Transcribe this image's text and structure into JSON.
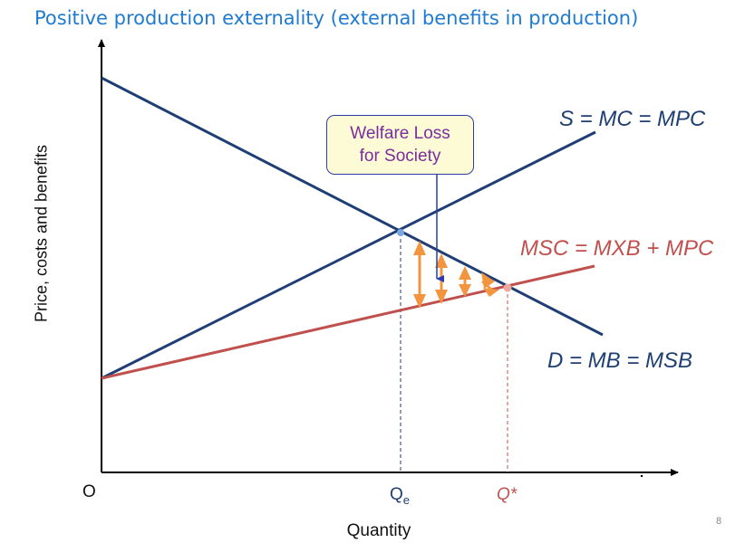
{
  "title": "Positive production externality (external benefits in production)",
  "axes": {
    "y_label": "Price, costs and benefits",
    "x_label": "Quantity",
    "origin_label": "O",
    "qe_main": "Q",
    "qe_sub": "e",
    "qstar_label": "Q*"
  },
  "curves": {
    "supply": "S = MC = MPC",
    "msc": "MSC = MXB + MPC",
    "demand": "D = MB = MSB"
  },
  "callout": {
    "line1": "Welfare Loss",
    "line2": "for Society"
  },
  "colors": {
    "title": "#1f7bd1",
    "supply_demand": "#1f3e74",
    "msc": "#c0504d",
    "arrows": "#f3953f",
    "callout_text": "#7a2d9c",
    "callout_bg": "#fdfbd6",
    "callout_border": "#2b3ea8"
  },
  "page_number": "8"
}
